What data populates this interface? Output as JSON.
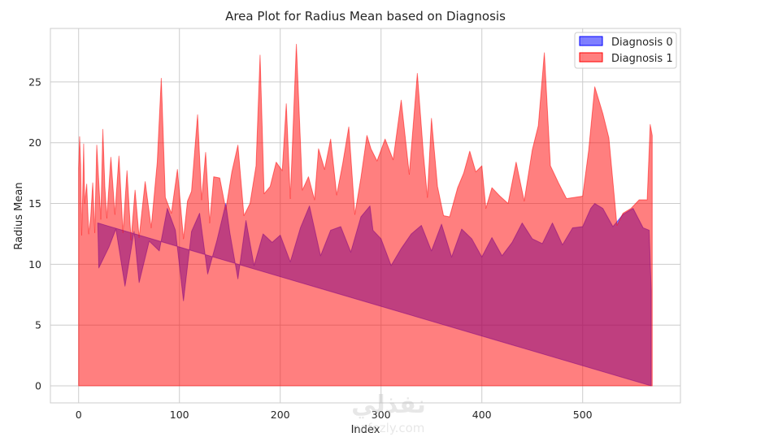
{
  "chart_data": {
    "type": "area",
    "title": "Area Plot for Radius Mean based on Diagnosis",
    "xlabel": "Index",
    "ylabel": "Radius Mean",
    "xlim": [
      -28,
      597
    ],
    "ylim": [
      -1.4,
      29.4
    ],
    "x_ticks": [
      0,
      100,
      200,
      300,
      400,
      500
    ],
    "y_ticks": [
      0,
      5,
      10,
      15,
      20,
      25
    ],
    "grid": true,
    "legend_placement": "top-right",
    "series": [
      {
        "name": "Diagnosis 0",
        "color": "#0000ff",
        "x": [
          19,
          20,
          30,
          37,
          46,
          55,
          60,
          70,
          80,
          88,
          96,
          104,
          112,
          120,
          128,
          137,
          146,
          150,
          158,
          166,
          174,
          183,
          192,
          200,
          210,
          220,
          229,
          240,
          250,
          260,
          270,
          280,
          289,
          292,
          300,
          310,
          320,
          330,
          340,
          350,
          360,
          370,
          380,
          390,
          400,
          410,
          420,
          430,
          440,
          450,
          460,
          470,
          480,
          490,
          500,
          508,
          512,
          520,
          530,
          540,
          550,
          560,
          566,
          568,
          568
        ],
        "y": [
          13.4,
          9.7,
          11.4,
          12.9,
          8.2,
          12.7,
          8.5,
          11.9,
          11.1,
          14.6,
          12.8,
          7.0,
          12.7,
          14.2,
          9.2,
          11.9,
          15.0,
          12.6,
          8.8,
          13.6,
          9.9,
          12.5,
          11.8,
          12.4,
          10.2,
          13.0,
          14.8,
          10.7,
          12.8,
          13.1,
          11.0,
          13.9,
          14.8,
          12.8,
          12.1,
          9.9,
          11.3,
          12.5,
          13.2,
          11.1,
          13.3,
          10.6,
          12.9,
          12.1,
          10.6,
          12.2,
          10.7,
          11.8,
          13.4,
          12.1,
          11.7,
          13.4,
          11.6,
          13.0,
          13.1,
          14.6,
          15.0,
          14.6,
          13.1,
          14.1,
          14.6,
          13.0,
          12.8,
          7.8,
          0
        ]
      },
      {
        "name": "Diagnosis 1",
        "color": "#ff0000",
        "x": [
          0,
          0,
          1,
          2,
          3,
          4,
          5,
          6,
          8,
          10,
          12,
          14,
          16,
          18,
          22,
          24,
          26,
          28,
          32,
          36,
          40,
          44,
          48,
          52,
          56,
          60,
          66,
          72,
          78,
          82,
          86,
          92,
          98,
          104,
          108,
          112,
          118,
          122,
          126,
          130,
          134,
          140,
          146,
          152,
          158,
          164,
          170,
          176,
          180,
          184,
          190,
          196,
          202,
          206,
          210,
          216,
          222,
          228,
          234,
          238,
          244,
          250,
          256,
          262,
          268,
          274,
          280,
          286,
          290,
          296,
          304,
          312,
          320,
          328,
          336,
          342,
          346,
          350,
          356,
          362,
          368,
          376,
          382,
          388,
          394,
          400,
          404,
          410,
          418,
          426,
          434,
          442,
          450,
          456,
          462,
          468,
          476,
          484,
          492,
          500,
          506,
          512,
          520,
          526,
          534,
          540,
          548,
          556,
          564,
          567,
          569,
          569
        ],
        "y": [
          0,
          17.9,
          20.5,
          18.2,
          12.4,
          15.7,
          19.9,
          15.0,
          16.6,
          12.5,
          13.9,
          16.7,
          12.6,
          19.8,
          13.7,
          21.1,
          16.4,
          13.8,
          18.8,
          14.1,
          18.9,
          12.6,
          17.7,
          12.0,
          16.1,
          12.2,
          16.8,
          13.0,
          18.4,
          25.3,
          15.5,
          14.2,
          17.8,
          12.1,
          15.2,
          16.0,
          22.3,
          15.3,
          19.2,
          13.4,
          17.2,
          17.1,
          14.5,
          17.6,
          19.8,
          14.0,
          15.0,
          18.1,
          27.2,
          15.8,
          16.4,
          18.4,
          17.7,
          23.2,
          15.4,
          28.1,
          16.1,
          17.2,
          15.3,
          19.5,
          17.8,
          20.3,
          15.7,
          18.3,
          21.3,
          14.1,
          17.1,
          20.6,
          19.5,
          18.5,
          20.3,
          18.6,
          23.5,
          17.4,
          25.7,
          19.1,
          15.5,
          22.0,
          16.4,
          14.0,
          13.9,
          16.3,
          17.5,
          19.3,
          17.6,
          18.1,
          14.6,
          16.3,
          15.6,
          15.0,
          18.4,
          15.2,
          19.4,
          21.4,
          27.4,
          18.1,
          16.7,
          15.4,
          15.5,
          15.6,
          19.4,
          24.6,
          22.4,
          20.4,
          13.2,
          14.2,
          14.6,
          15.3,
          15.3,
          21.5,
          20.6,
          0
        ]
      }
    ]
  },
  "watermark": {
    "arabic": "نفذلي",
    "latin": "nafezly.com"
  }
}
